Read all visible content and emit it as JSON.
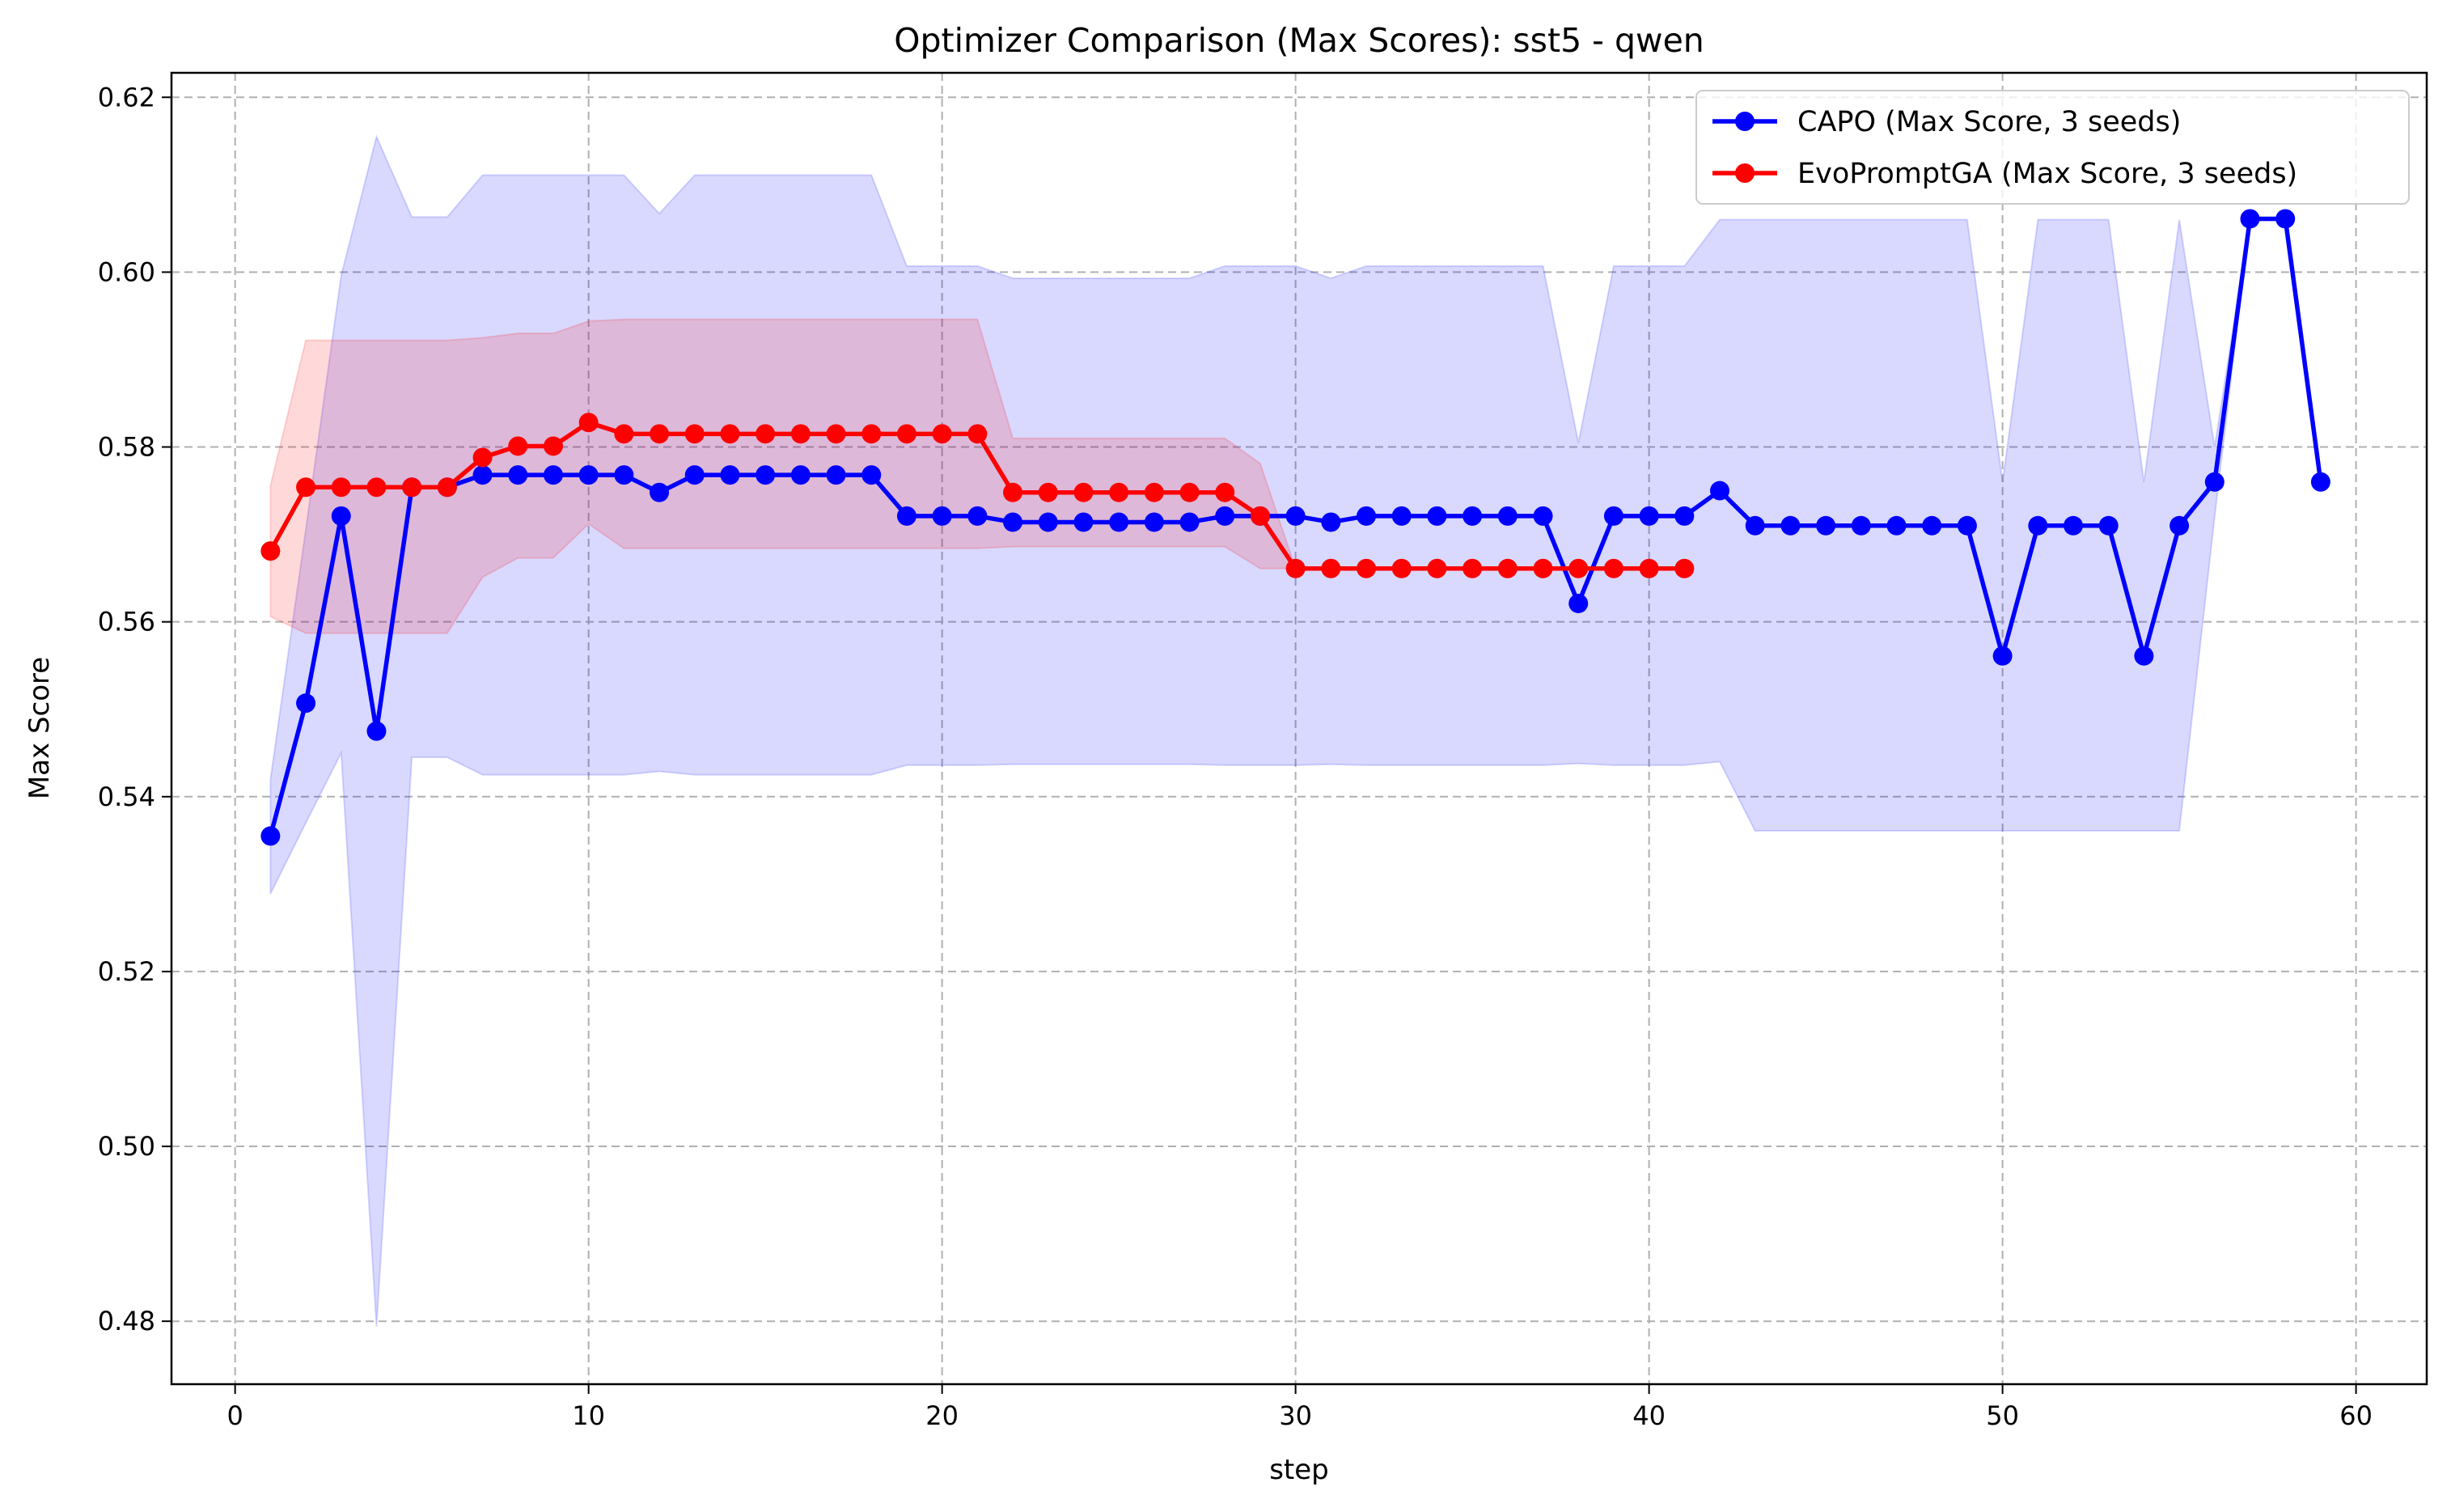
{
  "chart_data": {
    "type": "line",
    "title": "Optimizer Comparison (Max Scores): sst5 - qwen",
    "xlabel": "step",
    "ylabel": "Max Score",
    "xlim": [
      -1.8,
      62.0
    ],
    "ylim": [
      0.4728,
      0.6228
    ],
    "x_ticks": [
      0,
      10,
      20,
      30,
      40,
      50,
      60
    ],
    "y_ticks": [
      0.48,
      0.5,
      0.52,
      0.54,
      0.56,
      0.58,
      0.6,
      0.62
    ],
    "x_tick_labels": [
      "0",
      "10",
      "20",
      "30",
      "40",
      "50",
      "60"
    ],
    "y_tick_labels": [
      "0.48",
      "0.50",
      "0.52",
      "0.54",
      "0.56",
      "0.58",
      "0.60",
      "0.62"
    ],
    "grid": true,
    "legend_position": "top-right",
    "series": [
      {
        "name": "CAPO (Max Score, 3 seeds)",
        "color": "#0000ff",
        "band_color": "#0000ff",
        "x": [
          1,
          2,
          3,
          4,
          5,
          6,
          7,
          8,
          9,
          10,
          11,
          12,
          13,
          14,
          15,
          16,
          17,
          18,
          19,
          20,
          21,
          22,
          23,
          24,
          25,
          26,
          27,
          28,
          29,
          30,
          31,
          32,
          33,
          34,
          35,
          36,
          37,
          38,
          39,
          40,
          41,
          42,
          43,
          44,
          45,
          46,
          47,
          48,
          49,
          50,
          51,
          52,
          53,
          54,
          55,
          56,
          57,
          58,
          59
        ],
        "values": [
          0.5355,
          0.5507,
          0.5721,
          0.5475,
          0.5754,
          0.5754,
          0.5768,
          0.5768,
          0.5768,
          0.5768,
          0.5768,
          0.5748,
          0.5768,
          0.5768,
          0.5768,
          0.5768,
          0.5768,
          0.5768,
          0.5721,
          0.5721,
          0.5721,
          0.5714,
          0.5714,
          0.5714,
          0.5714,
          0.5714,
          0.5714,
          0.5721,
          0.5721,
          0.5721,
          0.5714,
          0.5721,
          0.5721,
          0.5721,
          0.5721,
          0.5721,
          0.5721,
          0.5621,
          0.5721,
          0.5721,
          0.5721,
          0.575,
          0.571,
          0.571,
          0.571,
          0.571,
          0.571,
          0.571,
          0.571,
          0.5561,
          0.571,
          0.571,
          0.571,
          0.5561,
          0.571,
          0.576,
          0.6061,
          0.6061,
          0.576
        ],
        "band_upper": [
          0.542,
          0.5706,
          0.5996,
          0.6155,
          0.6063,
          0.6063,
          0.6111,
          0.6111,
          0.6111,
          0.6111,
          0.6111,
          0.6067,
          0.6111,
          0.6111,
          0.6111,
          0.6111,
          0.6111,
          0.6111,
          0.6007,
          0.6007,
          0.6007,
          0.5993,
          0.5993,
          0.5993,
          0.5993,
          0.5993,
          0.5993,
          0.6007,
          0.6007,
          0.6007,
          0.5993,
          0.6007,
          0.6007,
          0.6007,
          0.6007,
          0.6007,
          0.6007,
          0.5805,
          0.6007,
          0.6007,
          0.6007,
          0.606,
          0.606,
          0.606,
          0.606,
          0.606,
          0.606,
          0.606,
          0.606,
          0.576,
          0.606,
          0.606,
          0.606,
          0.576,
          0.606,
          0.58,
          0.6061,
          0.6061,
          0.576
        ],
        "band_lower": [
          0.5289,
          0.537,
          0.545,
          0.4794,
          0.5445,
          0.5445,
          0.5425,
          0.5425,
          0.5425,
          0.5425,
          0.5425,
          0.5429,
          0.5425,
          0.5425,
          0.5425,
          0.5425,
          0.5425,
          0.5425,
          0.5436,
          0.5436,
          0.5436,
          0.5437,
          0.5437,
          0.5437,
          0.5437,
          0.5437,
          0.5437,
          0.5436,
          0.5436,
          0.5436,
          0.5437,
          0.5436,
          0.5436,
          0.5436,
          0.5436,
          0.5436,
          0.5436,
          0.5438,
          0.5436,
          0.5436,
          0.5436,
          0.544,
          0.5361,
          0.5361,
          0.5361,
          0.5361,
          0.5361,
          0.5361,
          0.5361,
          0.5361,
          0.5361,
          0.5361,
          0.5361,
          0.5361,
          0.5361,
          0.572,
          0.6061,
          0.6061,
          0.576
        ]
      },
      {
        "name": "EvoPromptGA (Max Score, 3 seeds)",
        "color": "#ff0000",
        "band_color": "#ff0000",
        "x": [
          1,
          2,
          3,
          4,
          5,
          6,
          7,
          8,
          9,
          10,
          11,
          12,
          13,
          14,
          15,
          16,
          17,
          18,
          19,
          20,
          21,
          22,
          23,
          24,
          25,
          26,
          27,
          28,
          29,
          30,
          31,
          32,
          33,
          34,
          35,
          36,
          37,
          38,
          39,
          40,
          41
        ],
        "values": [
          0.5681,
          0.5754,
          0.5754,
          0.5754,
          0.5754,
          0.5754,
          0.5788,
          0.5801,
          0.5801,
          0.5828,
          0.5815,
          0.5815,
          0.5815,
          0.5815,
          0.5815,
          0.5815,
          0.5815,
          0.5815,
          0.5815,
          0.5815,
          0.5815,
          0.5748,
          0.5748,
          0.5748,
          0.5748,
          0.5748,
          0.5748,
          0.5748,
          0.5721,
          0.5661,
          0.5661,
          0.5661,
          0.5661,
          0.5661,
          0.5661,
          0.5661,
          0.5661,
          0.5661,
          0.5661,
          0.5661,
          0.5661
        ],
        "band_upper": [
          0.5756,
          0.5922,
          0.5922,
          0.5922,
          0.5922,
          0.5922,
          0.5925,
          0.593,
          0.593,
          0.5944,
          0.5946,
          0.5946,
          0.5946,
          0.5946,
          0.5946,
          0.5946,
          0.5946,
          0.5946,
          0.5946,
          0.5946,
          0.5946,
          0.581,
          0.581,
          0.581,
          0.581,
          0.581,
          0.581,
          0.581,
          0.5781,
          0.5661,
          0.5661,
          0.5661,
          0.5661,
          0.5661,
          0.5661,
          0.5661,
          0.5661,
          0.5661,
          0.5661,
          0.5661,
          0.5661
        ],
        "band_lower": [
          0.5606,
          0.5587,
          0.5587,
          0.5587,
          0.5587,
          0.5587,
          0.5651,
          0.5673,
          0.5673,
          0.5712,
          0.5684,
          0.5684,
          0.5684,
          0.5684,
          0.5684,
          0.5684,
          0.5684,
          0.5684,
          0.5684,
          0.5684,
          0.5684,
          0.5686,
          0.5686,
          0.5686,
          0.5686,
          0.5686,
          0.5686,
          0.5686,
          0.5661,
          0.5661,
          0.5661,
          0.5661,
          0.5661,
          0.5661,
          0.5661,
          0.5661,
          0.5661,
          0.5661,
          0.5661,
          0.5661,
          0.5661
        ]
      }
    ]
  }
}
